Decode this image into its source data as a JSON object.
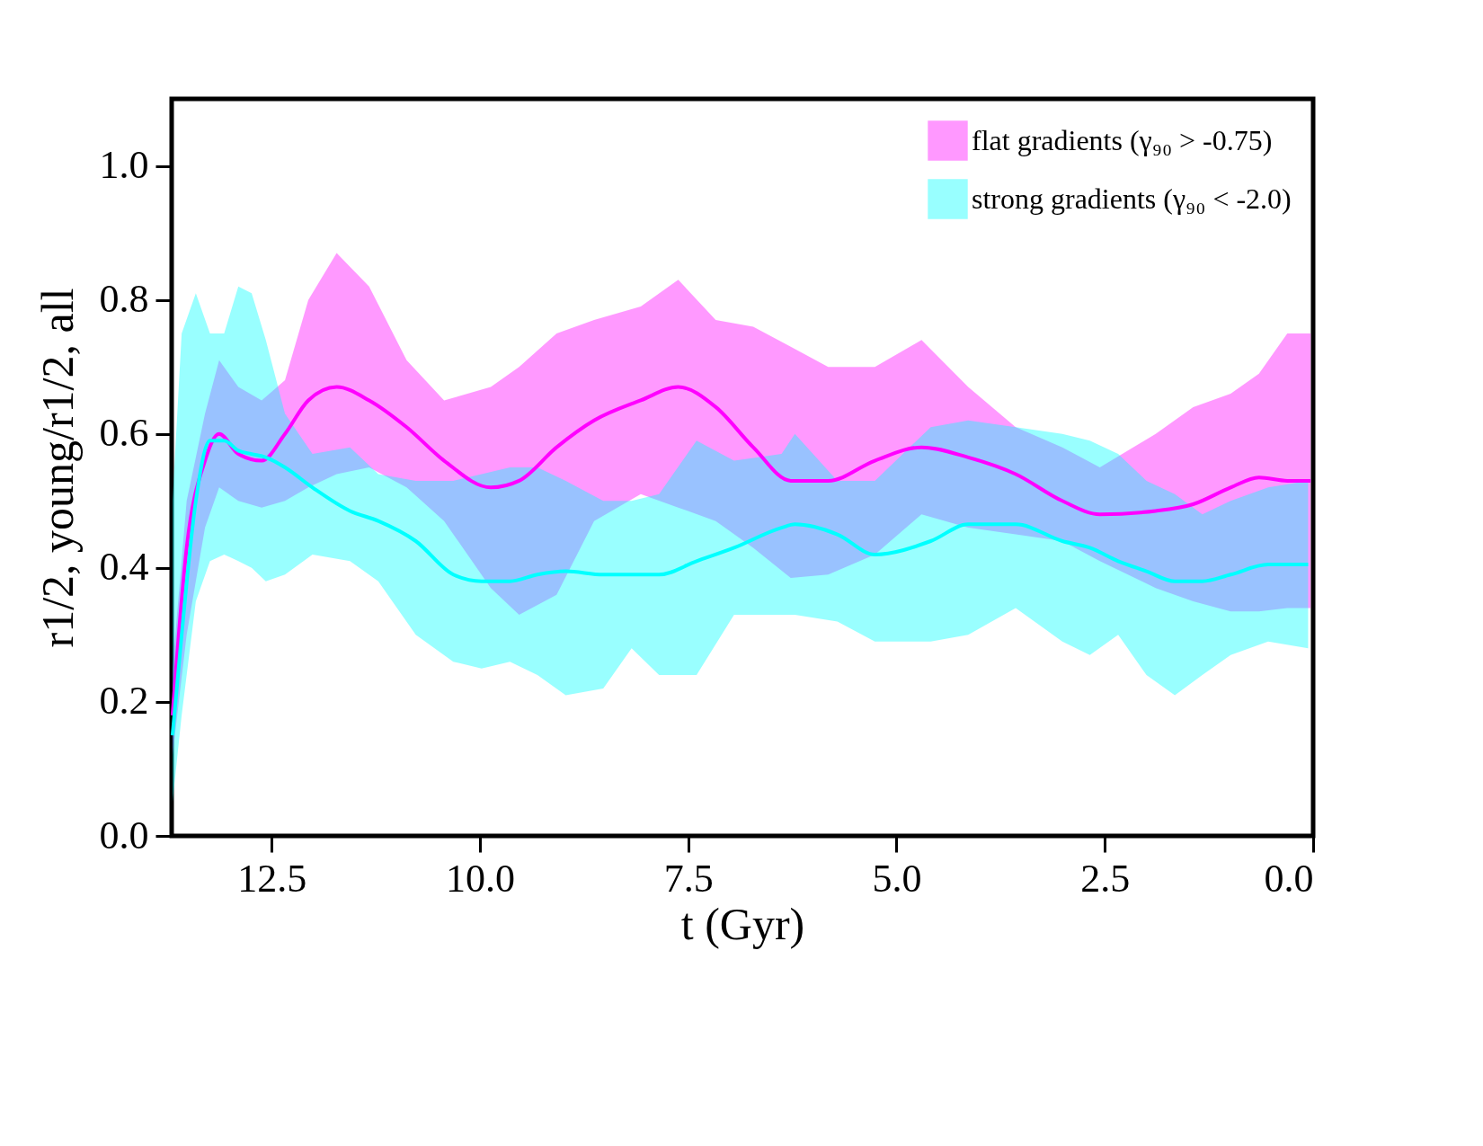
{
  "chart_data": {
    "type": "line",
    "xlabel": "t (Gyr)",
    "ylabel": "r1/2, young/r1/2, all",
    "xlim": [
      13.7,
      0
    ],
    "ylim": [
      0,
      1.1
    ],
    "xticks": [
      12.5,
      {
        "value": 10,
        "label": "10.0"
      },
      7.5,
      {
        "value": 5,
        "label": "5.0"
      },
      2.5,
      {
        "value": 0,
        "label": "0.0"
      }
    ],
    "yticks": [
      {
        "value": 0,
        "label": "0.0"
      },
      0.2,
      0.4,
      0.6,
      0.8,
      {
        "value": 1,
        "label": "1.0"
      }
    ],
    "legend": "top right",
    "grid": false,
    "line_style": "solid",
    "marker": "none",
    "series": [
      {
        "name": "flat gradients (γ₉₀ > -0.75)",
        "color": "#ff00ff",
        "x": [
          13.69,
          13.52,
          13.3,
          13.13,
          12.9,
          12.62,
          12.34,
          12.06,
          11.72,
          11.33,
          10.88,
          10.43,
          9.87,
          9.53,
          9.08,
          8.63,
          8.07,
          7.62,
          7.17,
          6.72,
          6.27,
          5.82,
          5.26,
          4.7,
          4.14,
          3.57,
          3.01,
          2.56,
          1.89,
          1.44,
          0.99,
          0.65,
          0.31,
          0.03
        ],
        "values": [
          0.18,
          0.43,
          0.56,
          0.6,
          0.57,
          0.56,
          0.6,
          0.65,
          0.67,
          0.65,
          0.61,
          0.56,
          0.52,
          0.53,
          0.58,
          0.62,
          0.65,
          0.67,
          0.64,
          0.58,
          0.53,
          0.53,
          0.56,
          0.58,
          0.565,
          0.54,
          0.5,
          0.48,
          0.485,
          0.495,
          0.52,
          0.535,
          0.53,
          0.53
        ],
        "upper": [
          0.25,
          0.5,
          0.63,
          0.71,
          0.67,
          0.65,
          0.68,
          0.8,
          0.87,
          0.82,
          0.71,
          0.65,
          0.67,
          0.7,
          0.75,
          0.77,
          0.79,
          0.83,
          0.77,
          0.76,
          0.73,
          0.7,
          0.7,
          0.74,
          0.67,
          0.61,
          0.58,
          0.55,
          0.6,
          0.64,
          0.66,
          0.69,
          0.75,
          0.75
        ],
        "lower": [
          0.12,
          0.3,
          0.46,
          0.52,
          0.5,
          0.49,
          0.5,
          0.52,
          0.54,
          0.55,
          0.52,
          0.47,
          0.37,
          0.33,
          0.36,
          0.47,
          0.51,
          0.49,
          0.47,
          0.43,
          0.385,
          0.39,
          0.42,
          0.48,
          0.46,
          0.45,
          0.44,
          0.41,
          0.37,
          0.35,
          0.335,
          0.335,
          0.34,
          0.34
        ]
      },
      {
        "name": "strong gradients (γ₉₀ < -2.0)",
        "color": "#00ffff",
        "x": [
          13.69,
          13.58,
          13.41,
          13.24,
          13.07,
          12.9,
          12.74,
          12.57,
          12.34,
          12.01,
          11.56,
          11.22,
          10.77,
          10.32,
          9.98,
          9.64,
          9.31,
          8.97,
          8.52,
          8.18,
          7.85,
          7.4,
          6.95,
          6.38,
          6.22,
          5.71,
          5.26,
          4.59,
          4.14,
          3.57,
          3.01,
          2.68,
          2.34,
          2.0,
          1.66,
          1.33,
          0.99,
          0.54,
          0.06
        ],
        "values": [
          0.15,
          0.3,
          0.5,
          0.59,
          0.59,
          0.575,
          0.57,
          0.565,
          0.55,
          0.52,
          0.485,
          0.47,
          0.44,
          0.39,
          0.38,
          0.38,
          0.39,
          0.395,
          0.39,
          0.39,
          0.39,
          0.41,
          0.43,
          0.46,
          0.465,
          0.45,
          0.42,
          0.44,
          0.465,
          0.465,
          0.44,
          0.43,
          0.41,
          0.395,
          0.38,
          0.38,
          0.39,
          0.405,
          0.405
        ],
        "upper": [
          0.5,
          0.75,
          0.81,
          0.75,
          0.75,
          0.82,
          0.81,
          0.74,
          0.63,
          0.57,
          0.58,
          0.54,
          0.53,
          0.53,
          0.54,
          0.55,
          0.55,
          0.53,
          0.5,
          0.5,
          0.51,
          0.59,
          0.56,
          0.57,
          0.6,
          0.53,
          0.53,
          0.61,
          0.62,
          0.61,
          0.6,
          0.59,
          0.57,
          0.53,
          0.51,
          0.48,
          0.5,
          0.52,
          0.53
        ],
        "lower": [
          0.05,
          0.18,
          0.35,
          0.41,
          0.42,
          0.41,
          0.4,
          0.38,
          0.39,
          0.42,
          0.41,
          0.38,
          0.3,
          0.26,
          0.25,
          0.26,
          0.24,
          0.21,
          0.22,
          0.28,
          0.24,
          0.24,
          0.33,
          0.33,
          0.33,
          0.32,
          0.29,
          0.29,
          0.3,
          0.34,
          0.29,
          0.27,
          0.3,
          0.24,
          0.21,
          0.24,
          0.27,
          0.29,
          0.28
        ]
      }
    ]
  }
}
